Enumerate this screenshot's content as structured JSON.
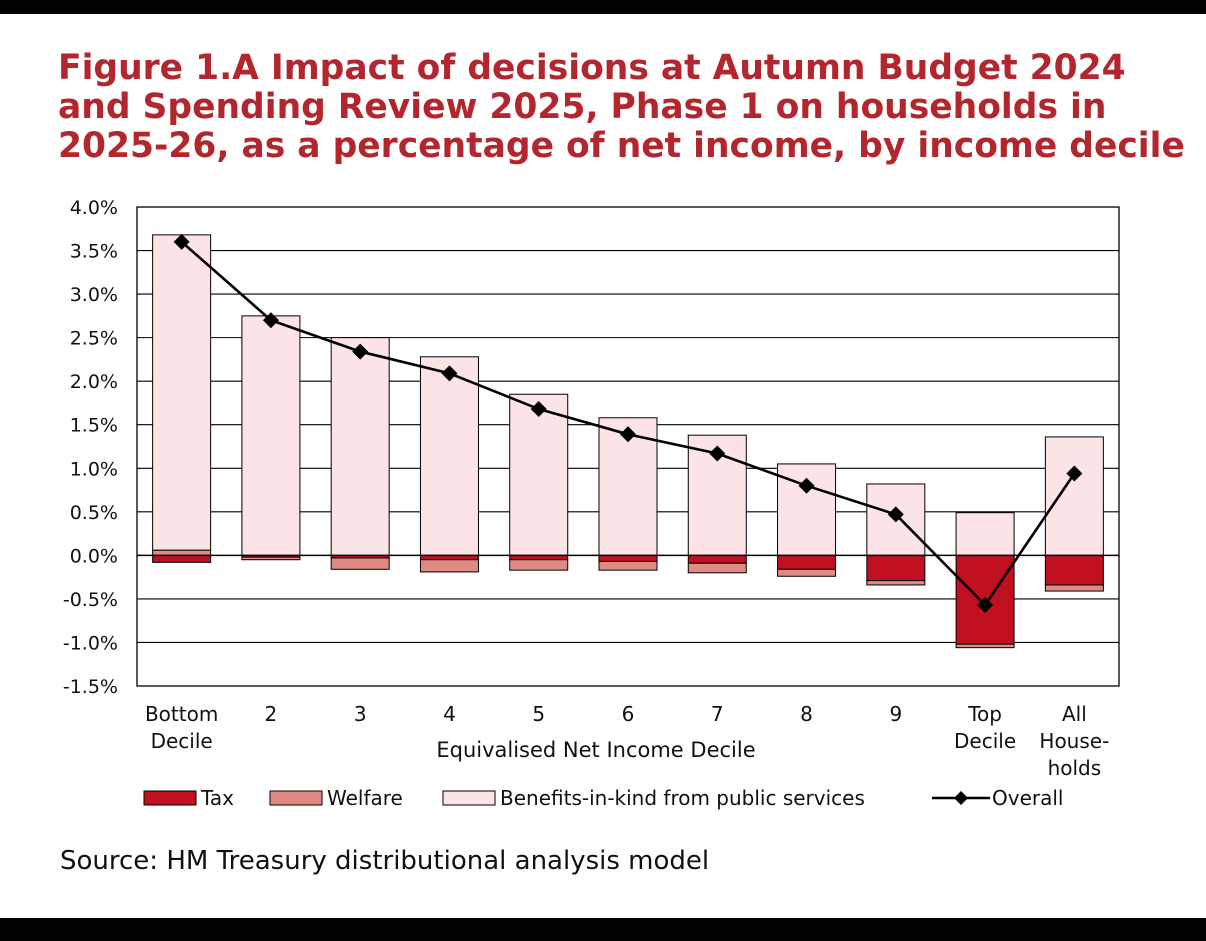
{
  "title": {
    "lines": [
      "Figure 1.A Impact of decisions at Autumn Budget 2024",
      "and Spending Review 2025, Phase 1 on households in",
      "2025-26, as a percentage of net income, by income decile"
    ]
  },
  "source": "Source: HM Treasury distributional analysis model",
  "colors": {
    "title": "#b3262d",
    "tax": "#c0101f",
    "welfare": "#e08a84",
    "benefits": "#fbe3e6",
    "overall": "#000000"
  },
  "chart_data": {
    "type": "bar",
    "stacked": true,
    "xlabel": "Equivalised Net Income Decile",
    "ylabel": "",
    "ylim": [
      -1.5,
      4.0
    ],
    "yticks": [
      -1.5,
      -1.0,
      -0.5,
      0.0,
      0.5,
      1.0,
      1.5,
      2.0,
      2.5,
      3.0,
      3.5,
      4.0
    ],
    "ytick_labels": [
      "-1.5%",
      "-1.0%",
      "-0.5%",
      "0.0%",
      "0.5%",
      "1.0%",
      "1.5%",
      "2.0%",
      "2.5%",
      "3.0%",
      "3.5%",
      "4.0%"
    ],
    "grid": true,
    "legend_position": "bottom",
    "categories": [
      [
        "Bottom",
        "Decile"
      ],
      [
        "2"
      ],
      [
        "3"
      ],
      [
        "4"
      ],
      [
        "5"
      ],
      [
        "6"
      ],
      [
        "7"
      ],
      [
        "8"
      ],
      [
        "9"
      ],
      [
        "Top",
        "Decile"
      ],
      [
        "All",
        "House-",
        "holds"
      ]
    ],
    "series": [
      {
        "name": "Tax",
        "kind": "bar",
        "color": "#c0101f",
        "values": [
          -0.08,
          -0.02,
          -0.03,
          -0.05,
          -0.05,
          -0.07,
          -0.09,
          -0.16,
          -0.29,
          -1.02,
          -0.34
        ]
      },
      {
        "name": "Welfare",
        "kind": "bar",
        "color": "#e08a84",
        "values": [
          0.06,
          -0.03,
          -0.13,
          -0.14,
          -0.12,
          -0.1,
          -0.11,
          -0.08,
          -0.05,
          -0.04,
          -0.07
        ]
      },
      {
        "name": "Benefits-in-kind from public services",
        "kind": "bar",
        "color": "#fbe3e6",
        "values": [
          3.62,
          2.75,
          2.5,
          2.28,
          1.85,
          1.58,
          1.38,
          1.05,
          0.82,
          0.49,
          1.36
        ]
      },
      {
        "name": "Overall",
        "kind": "line",
        "color": "#000000",
        "values": [
          3.6,
          2.7,
          2.34,
          2.09,
          1.68,
          1.39,
          1.17,
          0.8,
          0.47,
          -0.57,
          0.94
        ]
      }
    ]
  }
}
